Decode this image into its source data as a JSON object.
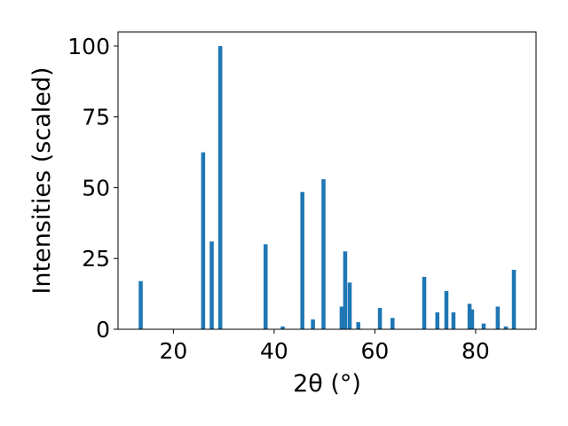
{
  "chart_data": {
    "type": "bar",
    "xlabel": "2θ (°)",
    "ylabel": "Intensities (scaled)",
    "xlim": [
      9,
      92
    ],
    "ylim": [
      0,
      105
    ],
    "x_ticks": [
      20,
      40,
      60,
      80
    ],
    "y_ticks": [
      0,
      25,
      50,
      75,
      100
    ],
    "bar_width": 0.8,
    "bar_color": "#1f77b4",
    "grid": false,
    "legend": "none",
    "series": [
      {
        "x": [
          13.5,
          25.9,
          27.6,
          29.3,
          38.3,
          41.7,
          45.6,
          47.7,
          49.8,
          53.4,
          54.1,
          55.0,
          56.7,
          61.0,
          63.5,
          69.8,
          72.4,
          74.2,
          75.6,
          78.8,
          79.3,
          81.6,
          84.4,
          86.0,
          87.6
        ],
        "values": [
          17,
          62.5,
          31,
          100,
          30,
          1,
          48.5,
          3.5,
          53,
          8,
          27.5,
          16.5,
          2.5,
          7.5,
          4,
          18.5,
          6,
          13.5,
          6,
          9,
          7,
          2,
          8,
          1,
          21
        ]
      }
    ]
  }
}
